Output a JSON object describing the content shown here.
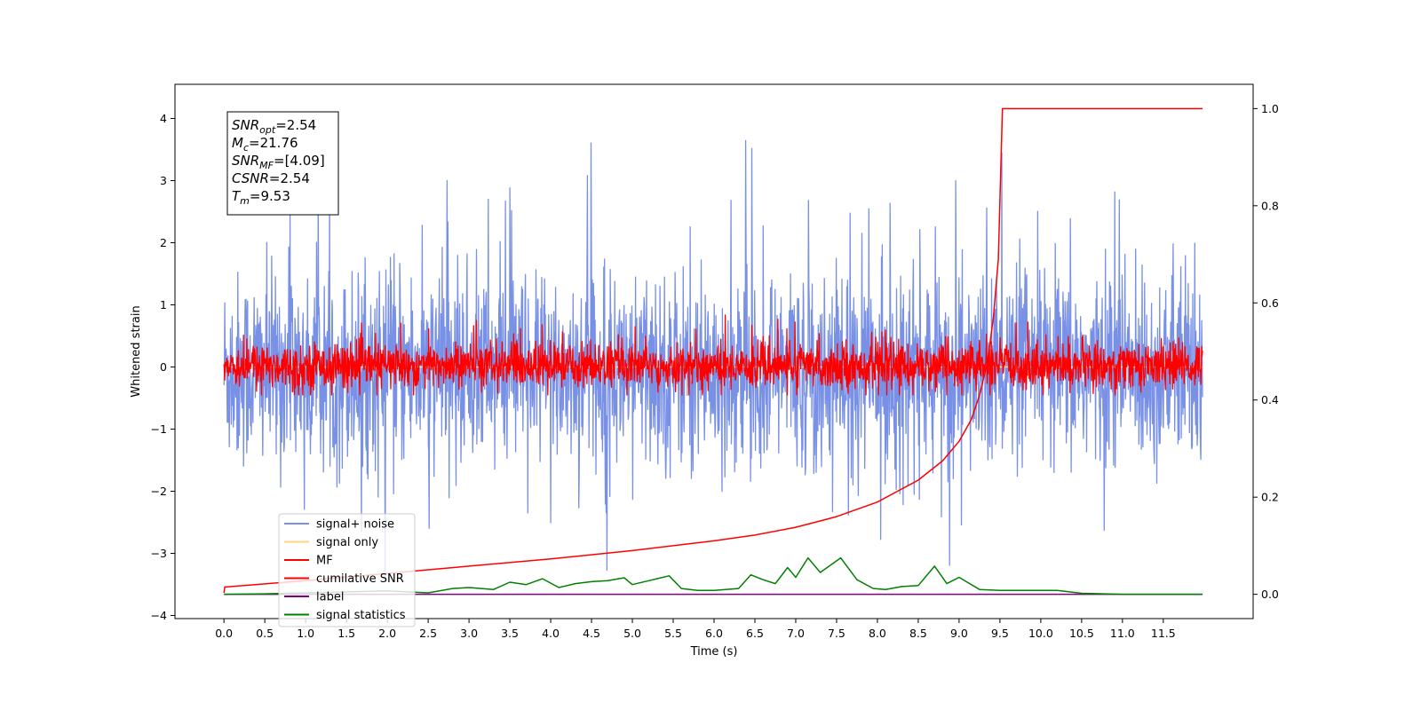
{
  "chart_data": {
    "type": "line",
    "xlabel": "Time (s)",
    "ylabel": "Whitened strain",
    "xlim": [
      -0.6,
      12.6
    ],
    "ylim": [
      -4.05,
      4.55
    ],
    "y2lim": [
      -0.05,
      1.05
    ],
    "grid": false,
    "legend_position": "lower-left",
    "x_ticks": [
      0.0,
      0.5,
      1.0,
      1.5,
      2.0,
      2.5,
      3.0,
      3.5,
      4.0,
      4.5,
      5.0,
      5.5,
      6.0,
      6.5,
      7.0,
      7.5,
      8.0,
      8.5,
      9.0,
      9.5,
      10.0,
      10.5,
      11.0,
      11.5
    ],
    "x_tick_labels": [
      "0.0",
      "0.5",
      "1.0",
      "1.5",
      "2.0",
      "2.5",
      "3.0",
      "3.5",
      "4.0",
      "4.5",
      "5.0",
      "5.5",
      "6.0",
      "6.5",
      "7.0",
      "7.5",
      "8.0",
      "8.5",
      "9.0",
      "9.5",
      "10.0",
      "10.5",
      "11.0",
      "11.5"
    ],
    "y_ticks": [
      -4,
      -3,
      -2,
      -1,
      0,
      1,
      2,
      3,
      4
    ],
    "y_tick_labels": [
      "−4",
      "−3",
      "−2",
      "−1",
      "0",
      "1",
      "2",
      "3",
      "4"
    ],
    "y2_ticks": [
      0.0,
      0.2,
      0.4,
      0.6,
      0.8,
      1.0
    ],
    "y2_tick_labels": [
      "0.0",
      "0.2",
      "0.4",
      "0.6",
      "0.8",
      "1.0"
    ],
    "annotation": {
      "lines": [
        {
          "base": "SNR",
          "sub": "opt",
          "value": "=2.54"
        },
        {
          "base": "M",
          "sub": "c",
          "value": "=21.76"
        },
        {
          "base": "SNR",
          "sub": "MF",
          "value": "=[4.09]"
        },
        {
          "base": "CSNR",
          "sub": "",
          "value": "=2.54"
        },
        {
          "base": "T",
          "sub": "m",
          "value": "=9.53"
        }
      ]
    },
    "series": [
      {
        "name": "signal+ noise",
        "color": "#7890e6",
        "axis": "left",
        "kind": "noise",
        "x_range": [
          0.0,
          11.98
        ],
        "center": -0.1,
        "typical_range": [
          -1.9,
          1.8
        ],
        "max": 4.15,
        "min": -3.45
      },
      {
        "name": "signal only",
        "color": "#ffd37f",
        "axis": "left",
        "kind": "flat",
        "x": [
          0.0,
          11.98
        ],
        "y": [
          0.0,
          0.0
        ]
      },
      {
        "name": "MF",
        "color": "#ff0000",
        "axis": "left",
        "kind": "noise",
        "x_range": [
          0.0,
          11.98
        ],
        "center": -0.05,
        "typical_range": [
          -0.4,
          0.45
        ],
        "max": 0.95,
        "min": -0.45
      },
      {
        "name": "cumilative SNR",
        "color": "#ff0000",
        "axis": "right",
        "x": [
          0.0,
          0.01,
          1.0,
          2.0,
          3.0,
          4.0,
          5.0,
          6.0,
          6.5,
          7.0,
          7.5,
          8.0,
          8.5,
          8.8,
          9.0,
          9.15,
          9.25,
          9.35,
          9.42,
          9.48,
          9.53,
          11.98
        ],
        "y": [
          0.003,
          0.015,
          0.028,
          0.043,
          0.058,
          0.073,
          0.09,
          0.11,
          0.122,
          0.138,
          0.16,
          0.19,
          0.235,
          0.275,
          0.315,
          0.36,
          0.41,
          0.48,
          0.57,
          0.69,
          1.0,
          1.0
        ]
      },
      {
        "name": "label",
        "color": "#800080",
        "axis": "right",
        "x": [
          0.0,
          11.98
        ],
        "y": [
          0.0,
          0.0
        ]
      },
      {
        "name": "signal statistics",
        "color": "#008000",
        "axis": "right",
        "x": [
          0.0,
          0.5,
          1.0,
          1.5,
          2.0,
          2.5,
          2.8,
          3.0,
          3.3,
          3.5,
          3.7,
          3.9,
          4.1,
          4.3,
          4.5,
          4.7,
          4.9,
          5.0,
          5.2,
          5.3,
          5.45,
          5.6,
          5.8,
          6.0,
          6.3,
          6.45,
          6.6,
          6.75,
          6.9,
          7.0,
          7.15,
          7.3,
          7.55,
          7.75,
          7.95,
          8.1,
          8.3,
          8.5,
          8.7,
          8.85,
          9.0,
          9.1,
          9.25,
          9.5,
          9.8,
          10.2,
          10.5,
          11.0,
          11.98
        ],
        "y": [
          0.0,
          0.001,
          0.003,
          0.005,
          0.007,
          0.003,
          0.012,
          0.014,
          0.01,
          0.025,
          0.02,
          0.032,
          0.014,
          0.022,
          0.026,
          0.028,
          0.034,
          0.02,
          0.028,
          0.032,
          0.038,
          0.012,
          0.008,
          0.008,
          0.012,
          0.04,
          0.03,
          0.022,
          0.055,
          0.035,
          0.075,
          0.045,
          0.075,
          0.03,
          0.012,
          0.01,
          0.016,
          0.018,
          0.058,
          0.022,
          0.035,
          0.025,
          0.01,
          0.008,
          0.008,
          0.008,
          0.002,
          0.0,
          0.0
        ]
      }
    ]
  }
}
